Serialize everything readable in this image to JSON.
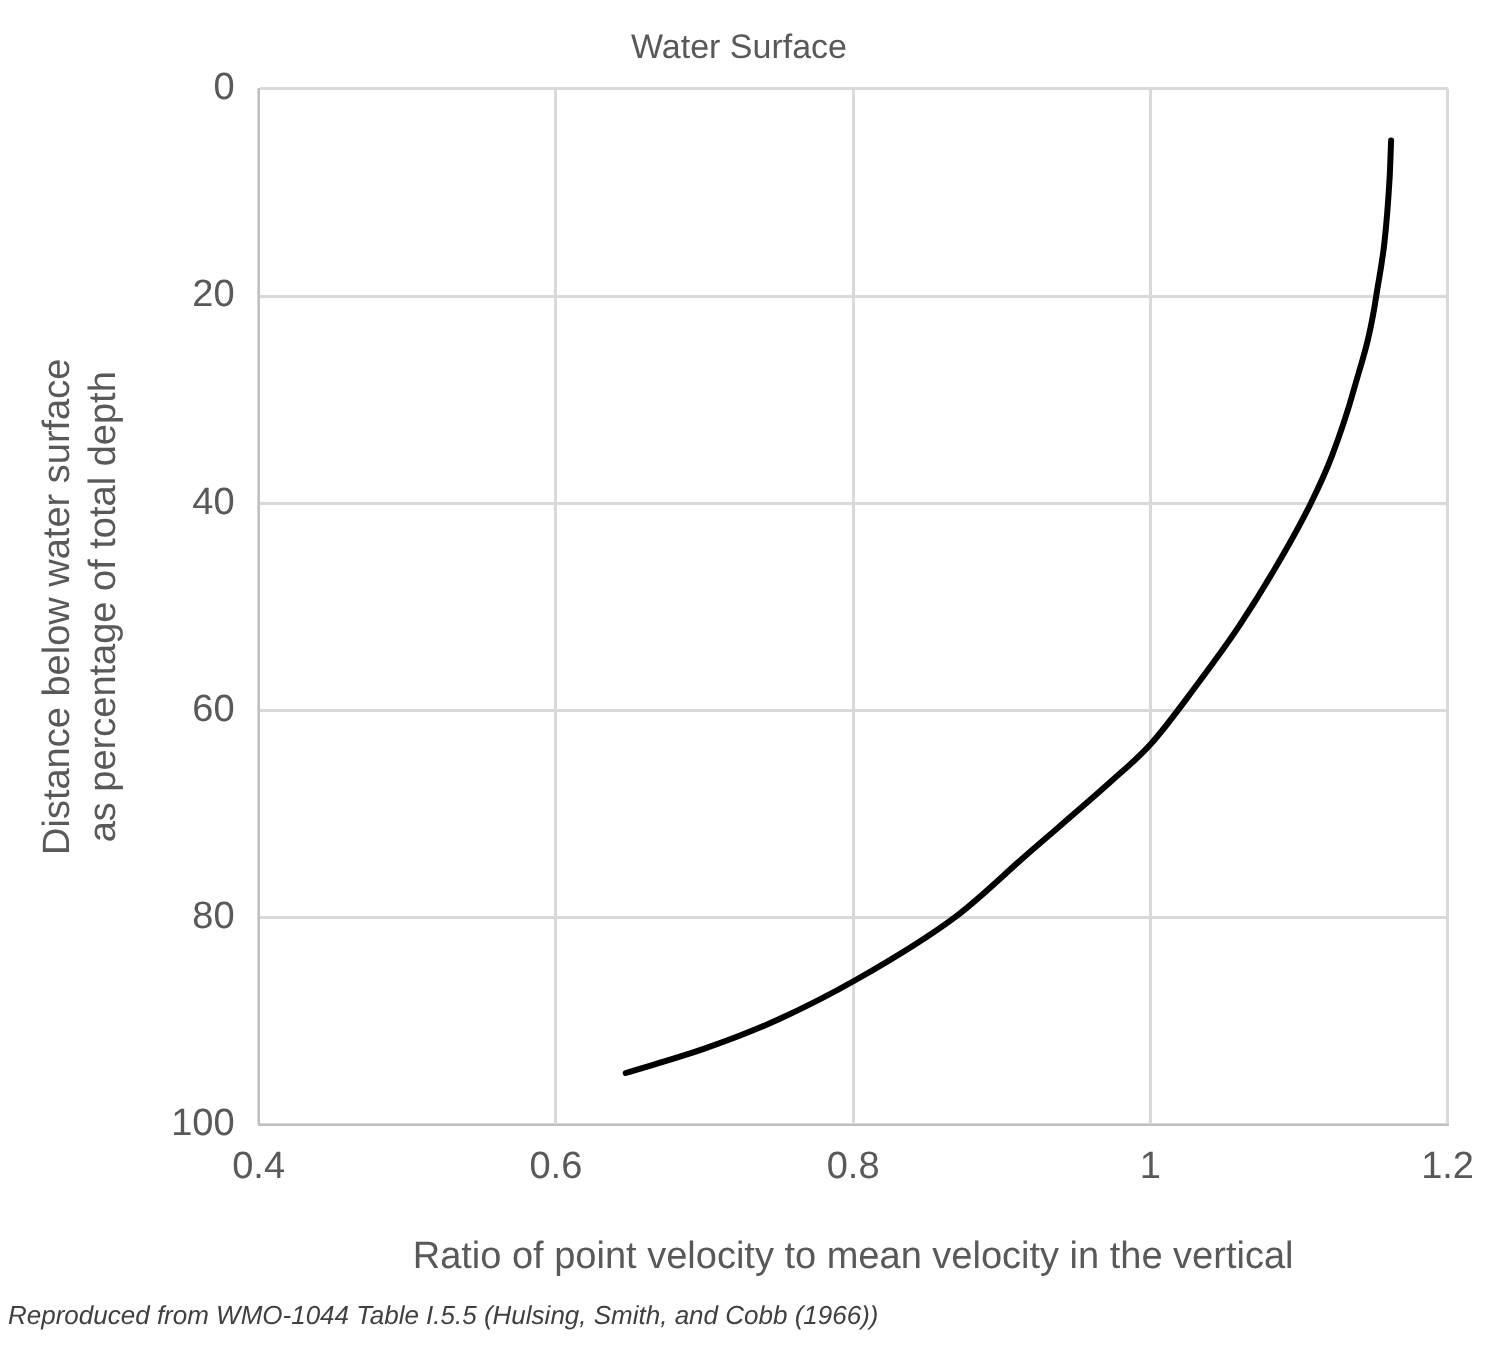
{
  "chart_data": {
    "type": "line",
    "title": "Water Surface",
    "xlabel": "Ratio of point velocity to mean velocity in the vertical",
    "ylabel": "Distance below water surface\nas percentage of total depth",
    "annotations": [
      "Reproduced from WMO-1044 Table I.5.5 (Hulsing, Smith, and Cobb (1966))"
    ],
    "series": [
      {
        "color": "#000000",
        "x": [
          1.162,
          1.161,
          1.152,
          1.137,
          1.122,
          1.108,
          1.088,
          1.06,
          1.031,
          1.0,
          0.974,
          0.917,
          0.87,
          0.802,
          0.744,
          0.699,
          0.647
        ],
        "values": [
          5,
          8.6,
          20,
          29,
          35.5,
          40,
          45.3,
          51.8,
          57.6,
          63.3,
          66.8,
          73.9,
          79.8,
          86,
          90.2,
          92.7,
          95
        ]
      }
    ],
    "xlim": [
      0.4,
      1.2
    ],
    "xticks": [
      0.4,
      0.6,
      0.8,
      1,
      1.2
    ],
    "ylim": [
      100,
      0
    ],
    "yticks": [
      0,
      20,
      40,
      60,
      80,
      100
    ],
    "grid": true,
    "legend": false,
    "marker": "none",
    "line_style": "solid"
  }
}
